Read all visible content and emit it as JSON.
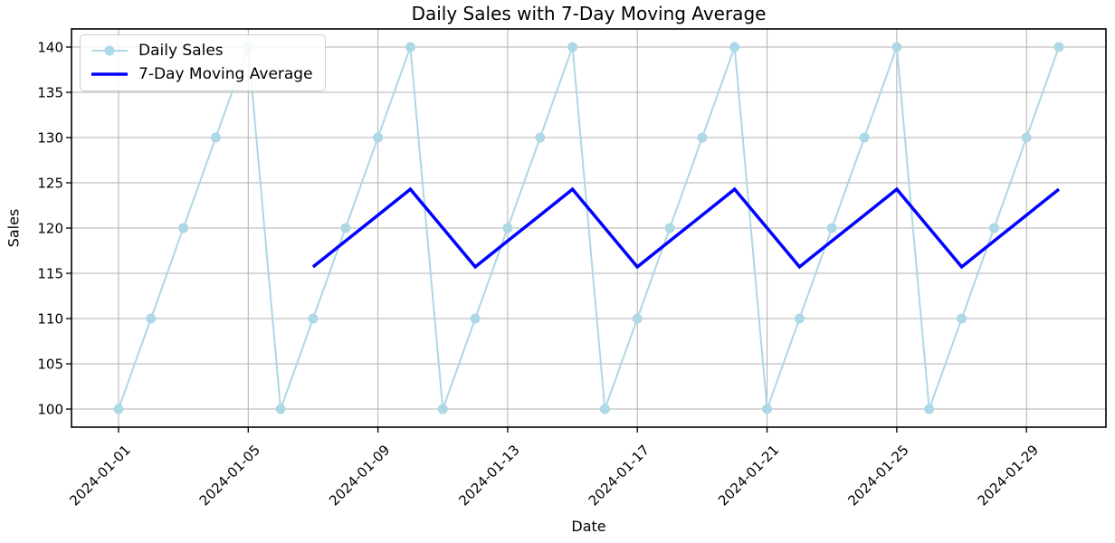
{
  "chart_data": {
    "type": "line",
    "title": "Daily Sales with 7-Day Moving Average",
    "xlabel": "Date",
    "ylabel": "Sales",
    "x": [
      "2024-01-01",
      "2024-01-02",
      "2024-01-03",
      "2024-01-04",
      "2024-01-05",
      "2024-01-06",
      "2024-01-07",
      "2024-01-08",
      "2024-01-09",
      "2024-01-10",
      "2024-01-11",
      "2024-01-12",
      "2024-01-13",
      "2024-01-14",
      "2024-01-15",
      "2024-01-16",
      "2024-01-17",
      "2024-01-18",
      "2024-01-19",
      "2024-01-20",
      "2024-01-21",
      "2024-01-22",
      "2024-01-23",
      "2024-01-24",
      "2024-01-25",
      "2024-01-26",
      "2024-01-27",
      "2024-01-28",
      "2024-01-29",
      "2024-01-30"
    ],
    "series": [
      {
        "name": "Daily Sales",
        "color": "#ADD8E6",
        "marker": "circle",
        "values": [
          100,
          110,
          120,
          130,
          140,
          100,
          110,
          120,
          130,
          140,
          100,
          110,
          120,
          130,
          140,
          100,
          110,
          120,
          130,
          140,
          100,
          110,
          120,
          130,
          140,
          100,
          110,
          120,
          130,
          140
        ]
      },
      {
        "name": "7-Day Moving Average",
        "color": "#0000FF",
        "marker": "none",
        "values": [
          null,
          null,
          null,
          null,
          null,
          null,
          115.71,
          118.57,
          121.43,
          124.29,
          120.0,
          115.71,
          118.57,
          121.43,
          124.29,
          120.0,
          115.71,
          118.57,
          121.43,
          124.29,
          120.0,
          115.71,
          118.57,
          121.43,
          124.29,
          120.0,
          115.71,
          118.57,
          121.43,
          124.29
        ]
      }
    ],
    "ylim": [
      98,
      142
    ],
    "yticks": [
      100,
      105,
      110,
      115,
      120,
      125,
      130,
      135,
      140
    ],
    "xtick_indices": [
      0,
      4,
      8,
      12,
      16,
      20,
      24,
      28
    ],
    "xtick_labels": [
      "2024-01-01",
      "2024-01-05",
      "2024-01-09",
      "2024-01-13",
      "2024-01-17",
      "2024-01-21",
      "2024-01-25",
      "2024-01-29"
    ],
    "xtick_rotation": -45,
    "grid": true,
    "grid_color": "#b0b0b0",
    "legend_position": "upper left",
    "text_color": "#000000",
    "spine_color": "#000000",
    "background_color": "#ffffff"
  }
}
